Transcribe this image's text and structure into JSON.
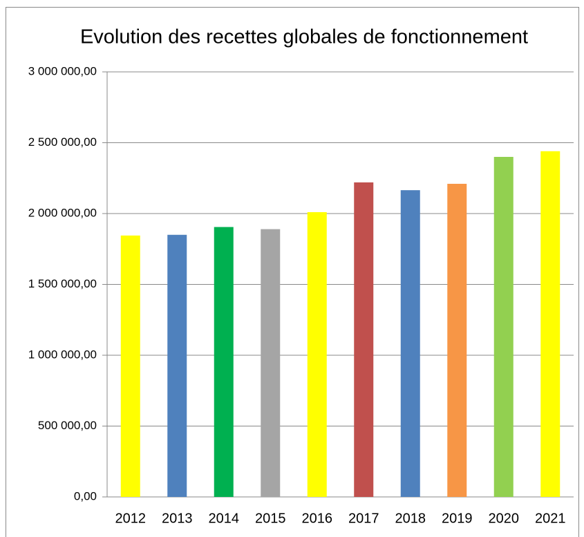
{
  "chart_data": {
    "type": "bar",
    "title": "Evolution des recettes globales de fonctionnement",
    "categories": [
      "2012",
      "2013",
      "2014",
      "2015",
      "2016",
      "2017",
      "2018",
      "2019",
      "2020",
      "2021"
    ],
    "values": [
      1845000,
      1850000,
      1905000,
      1890000,
      2010000,
      2220000,
      2165000,
      2210000,
      2400000,
      2440000
    ],
    "colors": [
      "#ffff00",
      "#4f81bd",
      "#00b050",
      "#a5a5a5",
      "#ffff00",
      "#c0504d",
      "#4f81bd",
      "#f79646",
      "#92d050",
      "#ffff00"
    ],
    "ylim": [
      0,
      3000000
    ],
    "yticks": [
      {
        "value": 0,
        "label": "0,00"
      },
      {
        "value": 500000,
        "label": "500 000,00"
      },
      {
        "value": 1000000,
        "label": "1 000 000,00"
      },
      {
        "value": 1500000,
        "label": "1 500 000,00"
      },
      {
        "value": 2000000,
        "label": "2 000 000,00"
      },
      {
        "value": 2500000,
        "label": "2 500 000,00"
      },
      {
        "value": 3000000,
        "label": "3 000 000,00"
      }
    ],
    "grid": true
  }
}
